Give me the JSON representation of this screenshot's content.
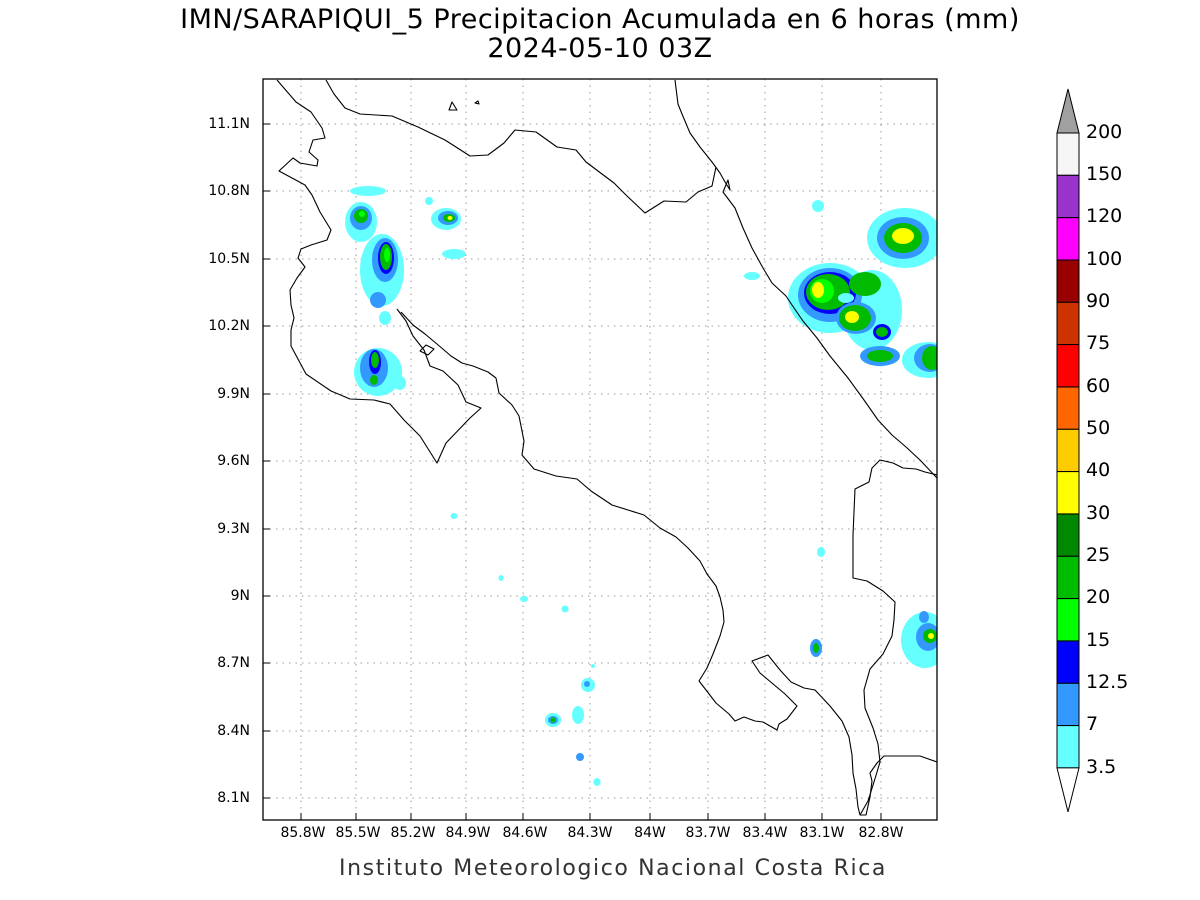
{
  "header": {
    "title_line1": "IMN/SARAPIQUI_5 Precipitacion Acumulada en 6 horas (mm)",
    "title_line2": "2024-05-10 03Z"
  },
  "footer": {
    "credit": "Instituto Meteorologico Nacional Costa Rica"
  },
  "map": {
    "lat_ticks": [
      "11.1N",
      "10.8N",
      "10.5N",
      "10.2N",
      "9.9N",
      "9.6N",
      "9.3N",
      "9N",
      "8.7N",
      "8.4N",
      "8.1N"
    ],
    "lon_ticks": [
      "85.8W",
      "85.5W",
      "85.2W",
      "84.9W",
      "84.6W",
      "84.3W",
      "84W",
      "83.7W",
      "83.4W",
      "83.1W",
      "82.8W"
    ],
    "grid": "dotted"
  },
  "colorbar": {
    "labels": [
      "200",
      "150",
      "120",
      "100",
      "90",
      "75",
      "60",
      "50",
      "40",
      "30",
      "25",
      "20",
      "15",
      "12.5",
      "7",
      "3.5"
    ],
    "colors": [
      "#f5f5f5",
      "#9933cc",
      "#ff00ff",
      "#990000",
      "#cc3300",
      "#ff0000",
      "#ff6600",
      "#ffcc00",
      "#ffff00",
      "#008800",
      "#00bb00",
      "#00ff00",
      "#0000ff",
      "#3399ff",
      "#66ffff"
    ],
    "over_color": "#a0a0a0",
    "under_color": "#ffffff"
  }
}
